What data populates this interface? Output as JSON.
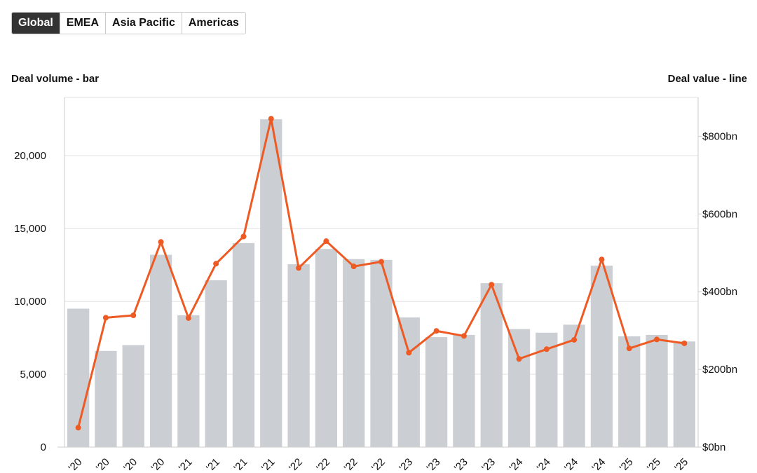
{
  "tabs": [
    {
      "label": "Global",
      "active": true
    },
    {
      "label": "EMEA",
      "active": false
    },
    {
      "label": "Asia Pacific",
      "active": false
    },
    {
      "label": "Americas",
      "active": false
    }
  ],
  "chart_data": {
    "type": "bar+line",
    "left_axis_title": "Deal volume - bar",
    "right_axis_title": "Deal value - line",
    "categories": [
      "'20",
      "'20",
      "'20",
      "'20",
      "'21",
      "'21",
      "'21",
      "'21",
      "'22",
      "'22",
      "'22",
      "'22",
      "'23",
      "'23",
      "'23",
      "'23",
      "'24",
      "'24",
      "'24",
      "'24",
      "'25",
      "'25",
      "'25"
    ],
    "bar_series": {
      "axis": "left",
      "color": "#cbcfd3",
      "values": [
        9500,
        6600,
        7000,
        13200,
        9050,
        11450,
        14000,
        22500,
        12550,
        13600,
        12900,
        12850,
        8900,
        7550,
        7700,
        11250,
        8100,
        7850,
        8400,
        12450,
        7600,
        7700,
        7250
      ]
    },
    "line_series": {
      "axis": "right",
      "color": "#ee5a24",
      "unit": "bn",
      "values": [
        50,
        333,
        339,
        528,
        332,
        472,
        542,
        845,
        461,
        530,
        465,
        477,
        243,
        299,
        286,
        418,
        227,
        252,
        276,
        483,
        254,
        277,
        267
      ]
    },
    "left_axis": {
      "range": [
        0,
        24000
      ],
      "ticks": [
        0,
        5000,
        10000,
        15000,
        20000
      ],
      "tick_labels": [
        "0",
        "5,000",
        "10,000",
        "15,000",
        "20,000"
      ]
    },
    "right_axis": {
      "range": [
        0,
        900
      ],
      "ticks": [
        0,
        200,
        400,
        600,
        800
      ],
      "tick_labels": [
        "$0bn",
        "$200bn",
        "$400bn",
        "$600bn",
        "$800bn"
      ]
    },
    "grid": true
  }
}
